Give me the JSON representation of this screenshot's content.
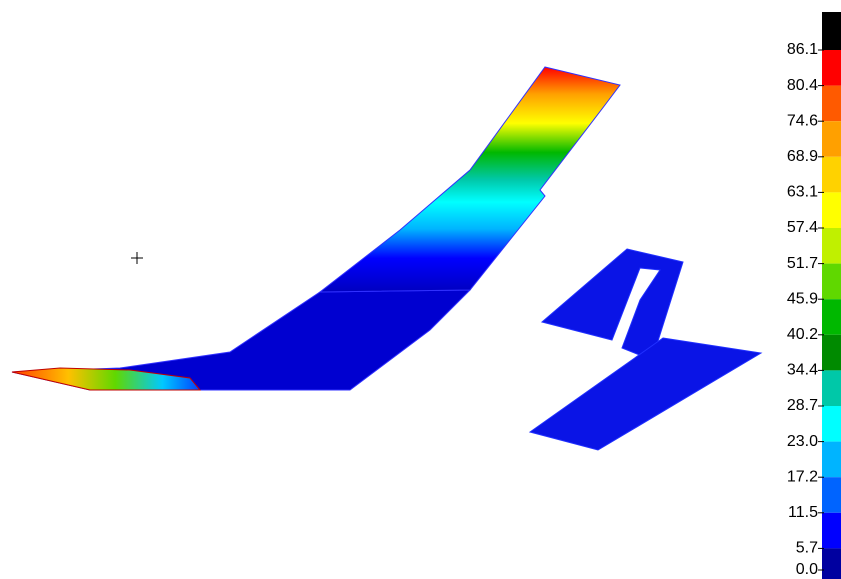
{
  "colorbar": {
    "labels": [
      "86.1",
      "80.4",
      "74.6",
      "68.9",
      "63.1",
      "57.4",
      "51.7",
      "45.9",
      "40.2",
      "34.4",
      "28.7",
      "23.0",
      "17.2",
      "11.5",
      "5.7",
      "0.0"
    ],
    "colors": [
      "#000000",
      "#ff0000",
      "#ff5a00",
      "#ffa000",
      "#ffd200",
      "#ffff00",
      "#c0f000",
      "#60d800",
      "#00b800",
      "#008a00",
      "#00c8a8",
      "#00ffff",
      "#00b4ff",
      "#0064ff",
      "#0000ff",
      "#0000a0"
    ]
  }
}
